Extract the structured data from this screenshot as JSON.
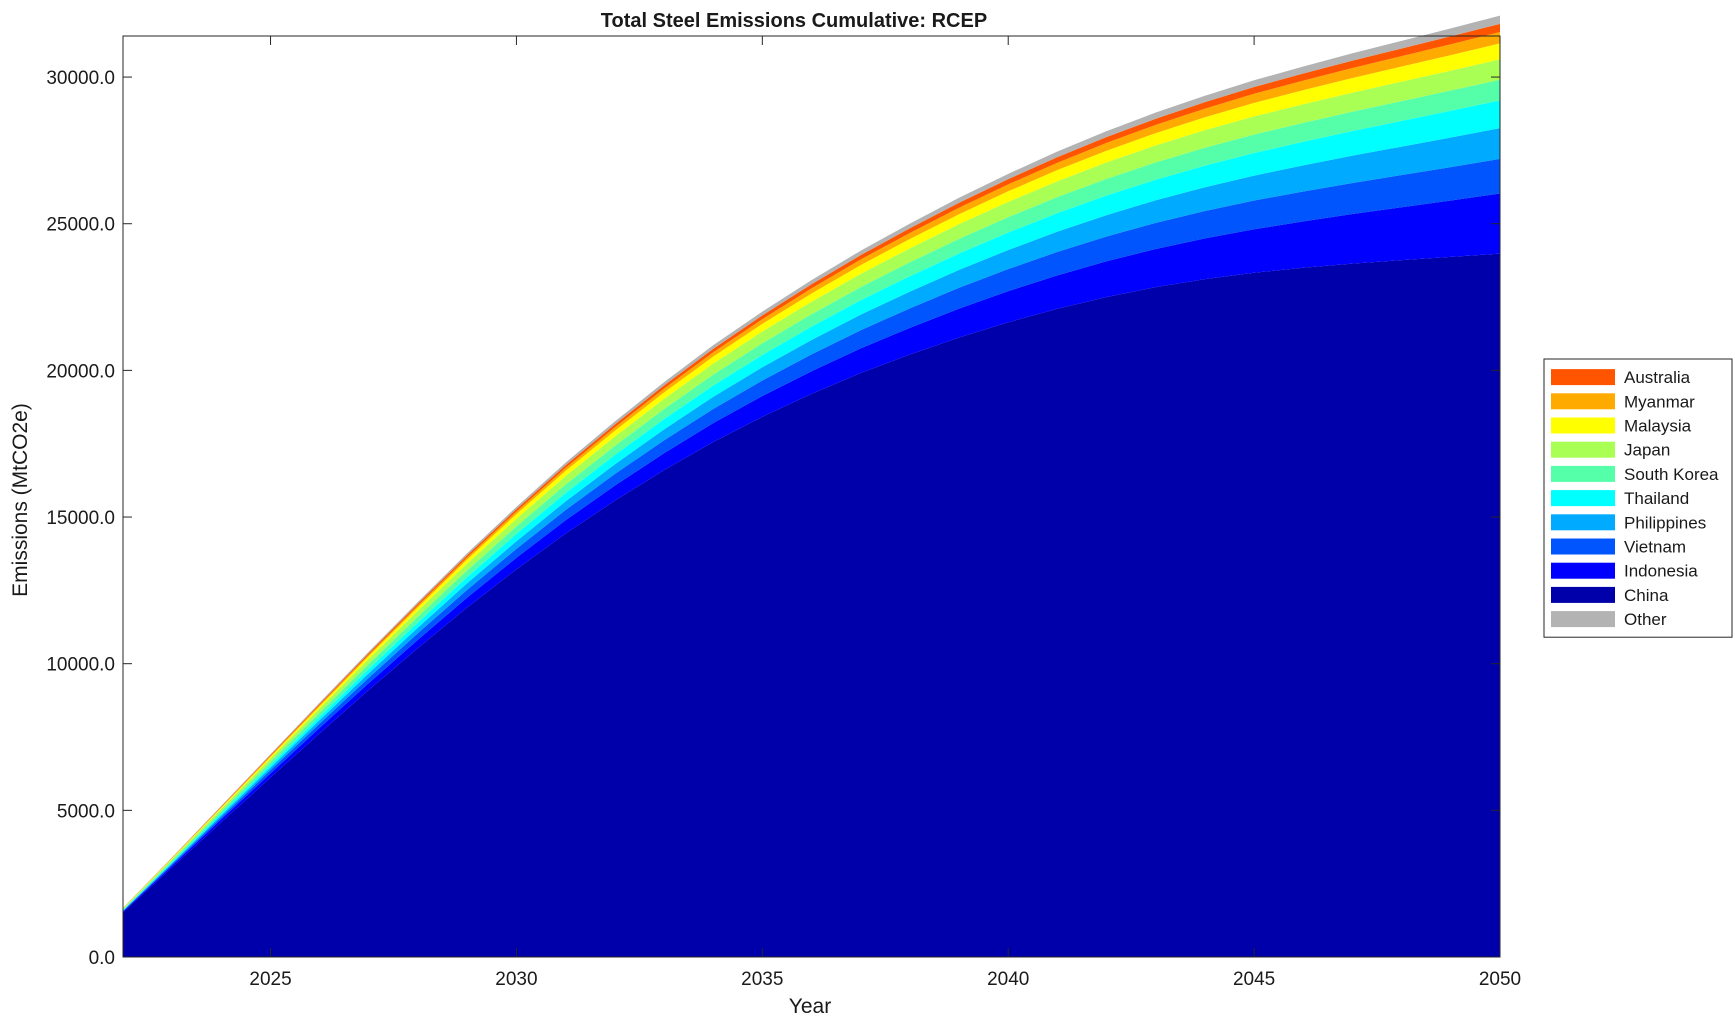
{
  "chart_data": {
    "type": "area",
    "stacked": true,
    "title": "Total Steel Emissions Cumulative: RCEP",
    "xlabel": "Year",
    "ylabel": "Emissions (MtCO2e)",
    "xlim": [
      2022,
      2050
    ],
    "ylim": [
      0,
      31400
    ],
    "x_ticks": [
      2025,
      2030,
      2035,
      2040,
      2045,
      2050
    ],
    "y_ticks": [
      0,
      5000,
      10000,
      15000,
      20000,
      25000,
      30000
    ],
    "y_tick_labels": [
      "0.0",
      "5000.0",
      "10000.0",
      "15000.0",
      "20000.0",
      "25000.0",
      "30000.0"
    ],
    "grid": false,
    "legend_position": "right",
    "x": [
      2022,
      2023,
      2024,
      2025,
      2026,
      2027,
      2028,
      2029,
      2030,
      2031,
      2032,
      2033,
      2034,
      2035,
      2036,
      2037,
      2038,
      2039,
      2040,
      2041,
      2042,
      2043,
      2044,
      2045,
      2046,
      2047,
      2048,
      2049,
      2050
    ],
    "series": [
      {
        "name": "China",
        "color": "#0000aa",
        "values": [
          1520,
          3060,
          4600,
          6120,
          7630,
          9110,
          10540,
          11920,
          13220,
          14440,
          15560,
          16600,
          17560,
          18420,
          19200,
          19910,
          20540,
          21120,
          21640,
          22100,
          22500,
          22840,
          23110,
          23330,
          23500,
          23640,
          23760,
          23870,
          23980
        ]
      },
      {
        "name": "Indonesia",
        "color": "#0000ff",
        "values": [
          30,
          65,
          100,
          140,
          185,
          230,
          280,
          335,
          390,
          450,
          510,
          575,
          640,
          705,
          770,
          840,
          910,
          985,
          1060,
          1140,
          1220,
          1300,
          1390,
          1480,
          1580,
          1690,
          1800,
          1920,
          2050
        ]
      },
      {
        "name": "Vietnam",
        "color": "#0055ff",
        "values": [
          20,
          45,
          75,
          110,
          145,
          185,
          225,
          265,
          305,
          350,
          395,
          440,
          485,
          530,
          575,
          620,
          665,
          710,
          755,
          800,
          845,
          890,
          935,
          980,
          1020,
          1060,
          1100,
          1140,
          1180
        ]
      },
      {
        "name": "Philippines",
        "color": "#00aaff",
        "values": [
          15,
          35,
          60,
          90,
          120,
          155,
          190,
          225,
          260,
          295,
          330,
          370,
          410,
          450,
          490,
          530,
          570,
          610,
          650,
          690,
          730,
          770,
          810,
          850,
          890,
          930,
          970,
          1010,
          1050
        ]
      },
      {
        "name": "Thailand",
        "color": "#00ffff",
        "values": [
          15,
          35,
          60,
          85,
          115,
          145,
          175,
          210,
          245,
          280,
          315,
          350,
          385,
          420,
          455,
          490,
          525,
          560,
          595,
          630,
          665,
          700,
          735,
          770,
          805,
          840,
          875,
          910,
          945
        ]
      },
      {
        "name": "South Korea",
        "color": "#55ffaa",
        "values": [
          25,
          50,
          80,
          110,
          140,
          170,
          200,
          230,
          260,
          290,
          315,
          345,
          375,
          400,
          425,
          450,
          475,
          500,
          525,
          550,
          570,
          590,
          610,
          630,
          645,
          660,
          675,
          690,
          705
        ]
      },
      {
        "name": "Japan",
        "color": "#aaff55",
        "values": [
          25,
          50,
          80,
          110,
          140,
          170,
          200,
          230,
          260,
          290,
          315,
          345,
          375,
          400,
          425,
          450,
          475,
          500,
          520,
          540,
          560,
          580,
          600,
          620,
          635,
          650,
          665,
          680,
          695
        ]
      },
      {
        "name": "Malaysia",
        "color": "#ffff00",
        "values": [
          10,
          25,
          40,
          60,
          80,
          100,
          120,
          140,
          160,
          180,
          200,
          220,
          240,
          260,
          280,
          300,
          320,
          340,
          360,
          380,
          400,
          420,
          440,
          460,
          480,
          500,
          515,
          530,
          545
        ]
      },
      {
        "name": "Myanmar",
        "color": "#ffaa00",
        "values": [
          5,
          12,
          20,
          30,
          40,
          50,
          62,
          75,
          88,
          100,
          115,
          130,
          145,
          160,
          175,
          190,
          205,
          220,
          235,
          250,
          265,
          280,
          295,
          310,
          325,
          340,
          355,
          370,
          385
        ]
      },
      {
        "name": "Australia",
        "color": "#ff5500",
        "values": [
          5,
          12,
          20,
          30,
          40,
          50,
          60,
          70,
          80,
          90,
          100,
          110,
          120,
          130,
          140,
          150,
          160,
          170,
          180,
          190,
          200,
          210,
          220,
          230,
          240,
          250,
          260,
          270,
          280
        ]
      },
      {
        "name": "Other",
        "color": "#b3b3b3",
        "values": [
          5,
          12,
          20,
          30,
          40,
          50,
          60,
          70,
          80,
          90,
          100,
          110,
          120,
          130,
          140,
          150,
          160,
          170,
          180,
          190,
          200,
          210,
          220,
          230,
          240,
          250,
          260,
          270,
          280
        ]
      }
    ],
    "legend_order": [
      "Australia",
      "Myanmar",
      "Malaysia",
      "Japan",
      "South Korea",
      "Thailand",
      "Philippines",
      "Vietnam",
      "Indonesia",
      "China",
      "Other"
    ]
  }
}
